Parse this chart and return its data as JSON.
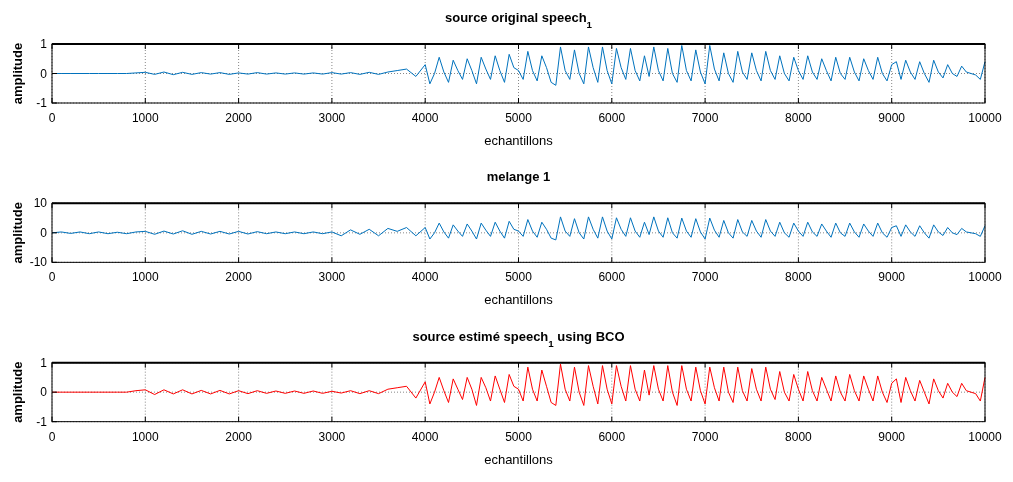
{
  "chart_data": [
    {
      "type": "line",
      "title": "source original speech$_{1}$",
      "xlabel": "echantillons",
      "ylabel": "amplitude",
      "xlim": [
        0,
        10000
      ],
      "ylim": [
        -1,
        1
      ],
      "xticks": [
        0,
        1000,
        2000,
        3000,
        4000,
        5000,
        6000,
        7000,
        8000,
        9000,
        10000
      ],
      "yticks": [
        -1,
        0,
        1
      ],
      "grid": true,
      "x": [
        0,
        100,
        200,
        300,
        400,
        500,
        600,
        700,
        800,
        900,
        1000,
        1100,
        1200,
        1300,
        1400,
        1500,
        1600,
        1700,
        1800,
        1900,
        2000,
        2100,
        2200,
        2300,
        2400,
        2500,
        2600,
        2700,
        2800,
        2900,
        3000,
        3100,
        3200,
        3300,
        3400,
        3500,
        3600,
        3700,
        3800,
        3900,
        4000,
        4050,
        4100,
        4150,
        4200,
        4250,
        4300,
        4350,
        4400,
        4450,
        4500,
        4550,
        4600,
        4650,
        4700,
        4750,
        4800,
        4850,
        4900,
        4950,
        5000,
        5050,
        5100,
        5150,
        5200,
        5250,
        5300,
        5350,
        5400,
        5450,
        5500,
        5550,
        5600,
        5650,
        5700,
        5750,
        5800,
        5850,
        5900,
        5950,
        6000,
        6050,
        6100,
        6150,
        6200,
        6250,
        6300,
        6350,
        6400,
        6450,
        6500,
        6550,
        6600,
        6650,
        6700,
        6750,
        6800,
        6850,
        6900,
        6950,
        7000,
        7050,
        7100,
        7150,
        7200,
        7250,
        7300,
        7350,
        7400,
        7450,
        7500,
        7550,
        7600,
        7650,
        7700,
        7750,
        7800,
        7850,
        7900,
        7950,
        8000,
        8050,
        8100,
        8150,
        8200,
        8250,
        8300,
        8350,
        8400,
        8450,
        8500,
        8550,
        8600,
        8650,
        8700,
        8750,
        8800,
        8850,
        8900,
        8950,
        9000,
        9050,
        9100,
        9150,
        9200,
        9250,
        9300,
        9350,
        9400,
        9450,
        9500,
        9550,
        9600,
        9650,
        9700,
        9750,
        9800,
        9850,
        9900,
        9950,
        10000
      ],
      "series": [
        {
          "color": "#0072bd",
          "values": [
            0,
            0,
            0,
            0,
            0,
            0,
            0,
            0,
            0,
            0.02,
            0.04,
            -0.03,
            0.05,
            -0.04,
            0.04,
            -0.03,
            0.03,
            -0.02,
            0.03,
            -0.03,
            0.02,
            -0.02,
            0.03,
            -0.02,
            0.02,
            -0.02,
            0.02,
            -0.02,
            0.02,
            -0.02,
            0.03,
            -0.02,
            0.03,
            -0.03,
            0.04,
            -0.03,
            0.05,
            0.1,
            0.15,
            -0.1,
            0.3,
            -0.35,
            0.0,
            0.55,
            0.05,
            -0.3,
            0.45,
            0.1,
            -0.2,
            0.5,
            0.1,
            -0.35,
            0.55,
            0.15,
            -0.2,
            0.6,
            0.1,
            -0.3,
            0.65,
            0.2,
            0.1,
            -0.2,
            0.75,
            0.1,
            -0.25,
            0.6,
            0.2,
            -0.3,
            -0.4,
            0.9,
            0.1,
            -0.2,
            0.8,
            0.0,
            -0.35,
            0.9,
            0.2,
            -0.3,
            0.9,
            0.1,
            -0.35,
            0.85,
            0.2,
            -0.2,
            0.85,
            0.1,
            -0.25,
            0.6,
            -0.1,
            0.9,
            0.1,
            -0.25,
            0.85,
            0.0,
            -0.3,
            0.95,
            0.1,
            -0.25,
            0.8,
            0.05,
            -0.35,
            0.95,
            0.15,
            -0.25,
            0.7,
            0.0,
            -0.3,
            0.75,
            0.05,
            -0.2,
            0.7,
            0.1,
            -0.25,
            0.75,
            0.1,
            -0.2,
            0.6,
            0.0,
            -0.25,
            0.55,
            0.1,
            -0.2,
            0.6,
            0.05,
            -0.2,
            0.5,
            0.1,
            -0.25,
            0.55,
            0.0,
            -0.2,
            0.55,
            0.05,
            -0.25,
            0.5,
            0.1,
            -0.2,
            0.55,
            0.0,
            -0.25,
            0.3,
            0.4,
            -0.2,
            0.45,
            0.05,
            -0.2,
            0.4,
            0.0,
            -0.3,
            0.45,
            0.05,
            -0.15,
            0.3,
            0.0,
            -0.1,
            0.25,
            0.05,
            0.0,
            -0.05,
            -0.2,
            0.4
          ]
        }
      ]
    },
    {
      "type": "line",
      "title": "melange 1",
      "xlabel": "echantillons",
      "ylabel": "amplitude",
      "xlim": [
        0,
        10000
      ],
      "ylim": [
        -10,
        10
      ],
      "xticks": [
        0,
        1000,
        2000,
        3000,
        4000,
        5000,
        6000,
        7000,
        8000,
        9000,
        10000
      ],
      "yticks": [
        -10,
        0,
        10
      ],
      "grid": true,
      "x": [
        0,
        100,
        200,
        300,
        400,
        500,
        600,
        700,
        800,
        900,
        1000,
        1100,
        1200,
        1300,
        1400,
        1500,
        1600,
        1700,
        1800,
        1900,
        2000,
        2100,
        2200,
        2300,
        2400,
        2500,
        2600,
        2700,
        2800,
        2900,
        3000,
        3100,
        3200,
        3300,
        3400,
        3500,
        3600,
        3700,
        3800,
        3900,
        4000,
        4050,
        4100,
        4150,
        4200,
        4250,
        4300,
        4350,
        4400,
        4450,
        4500,
        4550,
        4600,
        4650,
        4700,
        4750,
        4800,
        4850,
        4900,
        4950,
        5000,
        5050,
        5100,
        5150,
        5200,
        5250,
        5300,
        5350,
        5400,
        5450,
        5500,
        5550,
        5600,
        5650,
        5700,
        5750,
        5800,
        5850,
        5900,
        5950,
        6000,
        6050,
        6100,
        6150,
        6200,
        6250,
        6300,
        6350,
        6400,
        6450,
        6500,
        6550,
        6600,
        6650,
        6700,
        6750,
        6800,
        6850,
        6900,
        6950,
        7000,
        7050,
        7100,
        7150,
        7200,
        7250,
        7300,
        7350,
        7400,
        7450,
        7500,
        7550,
        7600,
        7650,
        7700,
        7750,
        7800,
        7850,
        7900,
        7950,
        8000,
        8050,
        8100,
        8150,
        8200,
        8250,
        8300,
        8350,
        8400,
        8450,
        8500,
        8550,
        8600,
        8650,
        8700,
        8750,
        8800,
        8850,
        8900,
        8950,
        9000,
        9050,
        9100,
        9150,
        9200,
        9250,
        9300,
        9350,
        9400,
        9450,
        9500,
        9550,
        9600,
        9650,
        9700,
        9750,
        9800,
        9850,
        9900,
        9950,
        10000
      ],
      "series": [
        {
          "color": "#0072bd",
          "values": [
            0,
            0.3,
            -0.2,
            0.3,
            -0.3,
            0.3,
            -0.3,
            0.2,
            -0.3,
            0.3,
            0.5,
            -0.5,
            0.6,
            -0.4,
            0.7,
            -0.5,
            0.5,
            -0.4,
            0.5,
            -0.4,
            0.5,
            -0.4,
            0.4,
            -0.3,
            0.3,
            -0.3,
            0.3,
            -0.3,
            0.3,
            -0.3,
            0.3,
            -1.0,
            1.0,
            -0.5,
            1.2,
            -1.0,
            1.5,
            0.5,
            1.8,
            -1.0,
            1.8,
            -2.1,
            0,
            3.3,
            0.3,
            -1.8,
            2.7,
            0.6,
            -1.2,
            3.0,
            0.6,
            -2.1,
            3.3,
            0.9,
            -1.2,
            3.6,
            0.6,
            -1.8,
            3.9,
            1.2,
            0.6,
            -1.2,
            4.5,
            0.6,
            -1.5,
            3.6,
            1.2,
            -1.8,
            -2.4,
            5.4,
            0.6,
            -1.2,
            4.8,
            0,
            -2.1,
            5.4,
            1.2,
            -1.8,
            5.4,
            0.6,
            -2.1,
            5.1,
            1.2,
            -1.2,
            5.1,
            0.6,
            -1.5,
            3.6,
            -0.6,
            5.4,
            0.6,
            -1.5,
            5.1,
            0,
            -1.8,
            5.0,
            0.6,
            -1.5,
            4.8,
            0.3,
            -2.1,
            5.0,
            0.9,
            -1.5,
            4.2,
            0,
            -1.8,
            4.5,
            0.3,
            -1.2,
            4.2,
            0.6,
            -1.5,
            4.5,
            0.6,
            -1.2,
            3.6,
            0,
            -1.5,
            3.3,
            0.6,
            -1.2,
            3.6,
            0.3,
            -1.2,
            3.0,
            0.6,
            -1.5,
            3.3,
            0,
            -1.2,
            3.3,
            0.3,
            -1.5,
            3.0,
            0.6,
            -1.2,
            3.3,
            0,
            -1.5,
            1.8,
            2.4,
            -1.2,
            2.7,
            0.3,
            -1.2,
            2.4,
            0,
            -1.8,
            2.7,
            0.3,
            -0.9,
            1.8,
            0,
            -0.6,
            1.5,
            0.3,
            0,
            -0.3,
            -1.2,
            2.4
          ]
        }
      ]
    },
    {
      "type": "line",
      "title": "source estimé speech$_{1}$ using BCO",
      "xlabel": "echantillons",
      "ylabel": "amplitude",
      "xlim": [
        0,
        10000
      ],
      "ylim": [
        -1,
        1
      ],
      "xticks": [
        0,
        1000,
        2000,
        3000,
        4000,
        5000,
        6000,
        7000,
        8000,
        9000,
        10000
      ],
      "yticks": [
        -1,
        0,
        1
      ],
      "grid": true,
      "x": [
        0,
        100,
        200,
        300,
        400,
        500,
        600,
        700,
        800,
        900,
        1000,
        1100,
        1200,
        1300,
        1400,
        1500,
        1600,
        1700,
        1800,
        1900,
        2000,
        2100,
        2200,
        2300,
        2400,
        2500,
        2600,
        2700,
        2800,
        2900,
        3000,
        3100,
        3200,
        3300,
        3400,
        3500,
        3600,
        3700,
        3800,
        3900,
        4000,
        4050,
        4100,
        4150,
        4200,
        4250,
        4300,
        4350,
        4400,
        4450,
        4500,
        4550,
        4600,
        4650,
        4700,
        4750,
        4800,
        4850,
        4900,
        4950,
        5000,
        5050,
        5100,
        5150,
        5200,
        5250,
        5300,
        5350,
        5400,
        5450,
        5500,
        5550,
        5600,
        5650,
        5700,
        5750,
        5800,
        5850,
        5900,
        5950,
        6000,
        6050,
        6100,
        6150,
        6200,
        6250,
        6300,
        6350,
        6400,
        6450,
        6500,
        6550,
        6600,
        6650,
        6700,
        6750,
        6800,
        6850,
        6900,
        6950,
        7000,
        7050,
        7100,
        7150,
        7200,
        7250,
        7300,
        7350,
        7400,
        7450,
        7500,
        7550,
        7600,
        7650,
        7700,
        7750,
        7800,
        7850,
        7900,
        7950,
        8000,
        8050,
        8100,
        8150,
        8200,
        8250,
        8300,
        8350,
        8400,
        8450,
        8500,
        8550,
        8600,
        8650,
        8700,
        8750,
        8800,
        8850,
        8900,
        8950,
        9000,
        9050,
        9100,
        9150,
        9200,
        9250,
        9300,
        9350,
        9400,
        9450,
        9500,
        9550,
        9600,
        9650,
        9700,
        9750,
        9800,
        9850,
        9900,
        9950,
        10000
      ],
      "series": [
        {
          "color": "#ff0000",
          "values": [
            0,
            0,
            0,
            0,
            0,
            0,
            0,
            0,
            0,
            0.05,
            0.08,
            -0.08,
            0.08,
            -0.06,
            0.08,
            -0.06,
            0.06,
            -0.06,
            0.06,
            -0.06,
            0.05,
            -0.05,
            0.05,
            -0.04,
            0.04,
            -0.04,
            0.04,
            -0.04,
            0.04,
            -0.04,
            0.03,
            -0.03,
            0.05,
            -0.05,
            0.05,
            -0.05,
            0.1,
            0.15,
            0.2,
            -0.2,
            0.35,
            -0.4,
            0.0,
            0.5,
            0.05,
            -0.35,
            0.45,
            0.1,
            -0.25,
            0.5,
            0.1,
            -0.45,
            0.5,
            0.15,
            -0.3,
            0.55,
            0.1,
            -0.35,
            0.6,
            0.2,
            0.1,
            -0.3,
            0.85,
            0.1,
            -0.3,
            0.75,
            0.2,
            -0.35,
            -0.45,
            0.95,
            0.1,
            -0.3,
            0.85,
            0.0,
            -0.45,
            0.9,
            0.2,
            -0.4,
            0.9,
            0.1,
            -0.4,
            0.9,
            0.2,
            -0.3,
            0.9,
            0.1,
            -0.3,
            0.75,
            -0.1,
            0.9,
            0.1,
            -0.3,
            0.9,
            0.0,
            -0.45,
            0.9,
            0.1,
            -0.3,
            0.85,
            0.05,
            -0.4,
            0.85,
            0.15,
            -0.3,
            0.85,
            0.0,
            -0.35,
            0.85,
            0.05,
            -0.3,
            0.8,
            0.1,
            -0.3,
            0.85,
            0.1,
            -0.25,
            0.7,
            0.0,
            -0.3,
            0.6,
            0.1,
            -0.3,
            0.7,
            0.05,
            -0.3,
            0.5,
            0.1,
            -0.3,
            0.55,
            0.0,
            -0.3,
            0.6,
            0.05,
            -0.3,
            0.55,
            0.1,
            -0.3,
            0.55,
            0.0,
            -0.35,
            0.3,
            0.45,
            -0.35,
            0.5,
            0.05,
            -0.3,
            0.4,
            0.0,
            -0.4,
            0.45,
            0.05,
            -0.2,
            0.3,
            0.0,
            -0.15,
            0.3,
            0.05,
            0.0,
            -0.05,
            -0.3,
            0.5
          ]
        }
      ]
    }
  ]
}
